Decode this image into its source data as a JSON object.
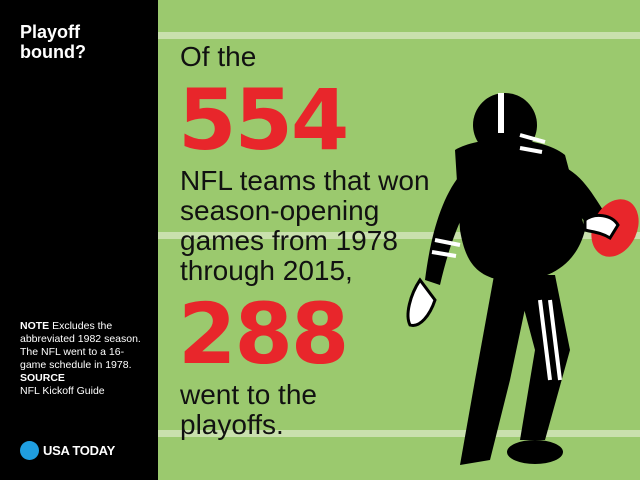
{
  "sidebar": {
    "title_line1": "Playoff",
    "title_line2": "bound?",
    "note_label": "NOTE",
    "note_text": "Excludes the abbreviated 1982 season. The NFL went to a 16-game schedule in 1978.",
    "source_label": "SOURCE",
    "source_text": "NFL Kickoff Guide",
    "logo_text": "USA TODAY"
  },
  "main": {
    "intro": "Of the",
    "stat1": "554",
    "line1": "NFL teams that won",
    "line2": "season-opening",
    "line3": "games from 1978",
    "line4": "through 2015,",
    "stat2": "288",
    "line5": "went to the",
    "line6": "playoffs."
  },
  "colors": {
    "field": "#9bc96e",
    "stat": "#e8262b",
    "sidebar": "#000000",
    "logo": "#1f9ee0"
  },
  "icons": {
    "player": "football-player-icon",
    "logo": "usa-today-dot-icon"
  }
}
